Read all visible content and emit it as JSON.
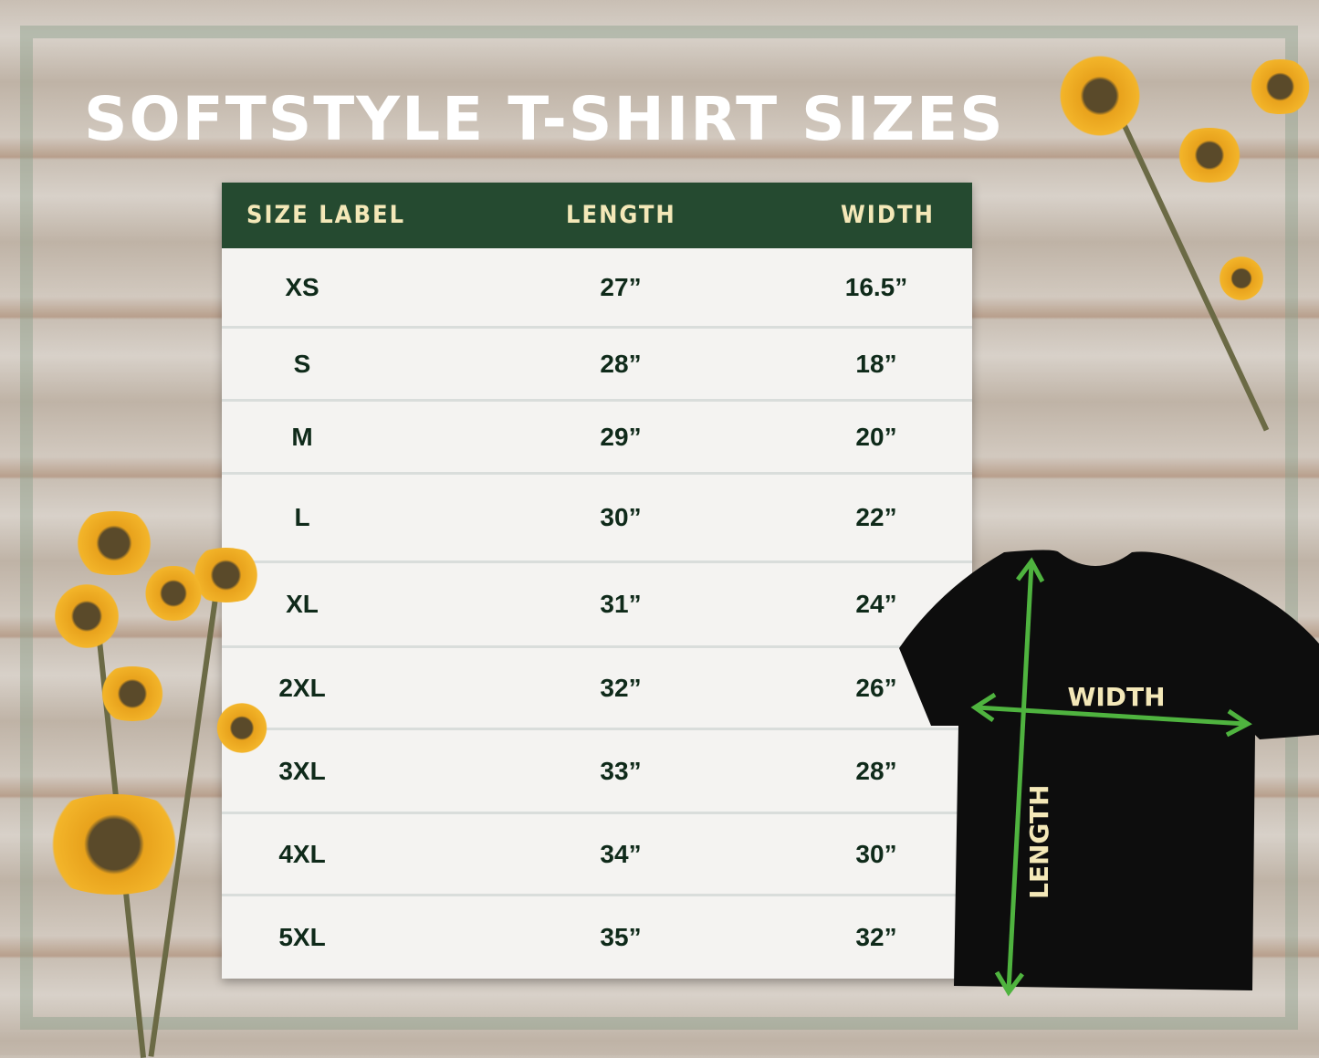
{
  "title": "SOFTSTYLE T-SHIRT SIZES",
  "table": {
    "headers": [
      "SIZE LABEL",
      "LENGTH",
      "WIDTH"
    ],
    "rows": [
      [
        "XS",
        "27”",
        "16.5”"
      ],
      [
        "S",
        "28”",
        "18”"
      ],
      [
        "M",
        "29”",
        "20”"
      ],
      [
        "L",
        "30”",
        "22”"
      ],
      [
        "XL",
        "31”",
        "24”"
      ],
      [
        "2XL",
        "32”",
        "26”"
      ],
      [
        "3XL",
        "33”",
        "28”"
      ],
      [
        "4XL",
        "34”",
        "30”"
      ],
      [
        "5XL",
        "35”",
        "32”"
      ]
    ]
  },
  "diagram": {
    "width_label": "WIDTH",
    "length_label": "LENGTH",
    "shirt_color": "#0d0d0d",
    "arrow_color": "#4fb33f"
  },
  "colors": {
    "header_bg": "#254a30",
    "header_text": "#f4e8b8",
    "cell_text": "#0f2a1a"
  }
}
